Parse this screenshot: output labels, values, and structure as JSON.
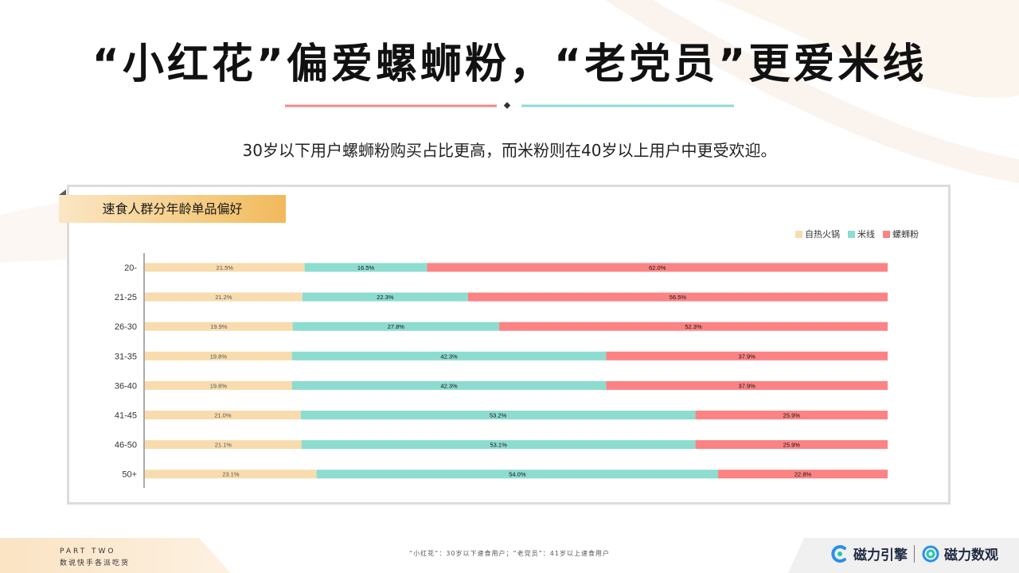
{
  "title": "“小红花”偏爱螺蛳粉，“老党员”更爱米线",
  "subtitle": "30岁以下用户螺蛳粉购买占比更高，而米粉则在40岁以上用户中更受欢迎。",
  "panel": {
    "tab_label": "速食人群分年龄单品偏好"
  },
  "footer": {
    "part": "PART TWO",
    "part_sub": "数说快手各派吃货",
    "footnote": "“小红花”：30岁以下速食用户；“老党员”：41岁以上速食用户",
    "logo1": "磁力引擎",
    "logo2": "磁力数观"
  },
  "colors": {
    "accent_red": "#f08a86",
    "accent_teal": "#8fdad3",
    "series_hotpot": "#f8dcae",
    "series_rice_noodle": "#8ddcd0",
    "series_luosifen": "#fb8383"
  },
  "chart_data": {
    "type": "bar",
    "orientation": "horizontal",
    "stacked": "100%",
    "categories": [
      "20-",
      "21-25",
      "26-30",
      "31-35",
      "36-40",
      "41-45",
      "46-50",
      "50+"
    ],
    "series": [
      {
        "name": "自热火锅",
        "values": [
          21.5,
          21.2,
          19.9,
          19.8,
          19.8,
          21.0,
          21.1,
          23.1
        ],
        "labels": [
          "21.5%",
          "21.2%",
          "19.9%",
          "19.8%",
          "19.8%",
          "21.0%",
          "21.1%",
          "23.1%"
        ]
      },
      {
        "name": "米线",
        "values": [
          16.5,
          22.3,
          27.8,
          42.3,
          42.3,
          53.2,
          53.1,
          54.0
        ],
        "labels": [
          "16.5%",
          "22.3%",
          "27.8%",
          "42.3%",
          "42.3%",
          "53.2%",
          "53.1%",
          "54.0%"
        ]
      },
      {
        "name": "螺蛳粉",
        "values": [
          62.0,
          56.5,
          52.3,
          37.9,
          37.9,
          25.9,
          25.9,
          22.8
        ],
        "labels": [
          "62.0%",
          "56.5%",
          "52.3%",
          "37.9%",
          "37.9%",
          "25.9%",
          "25.9%",
          "22.8%"
        ]
      }
    ],
    "legend_position": "top-right",
    "grid": false
  }
}
